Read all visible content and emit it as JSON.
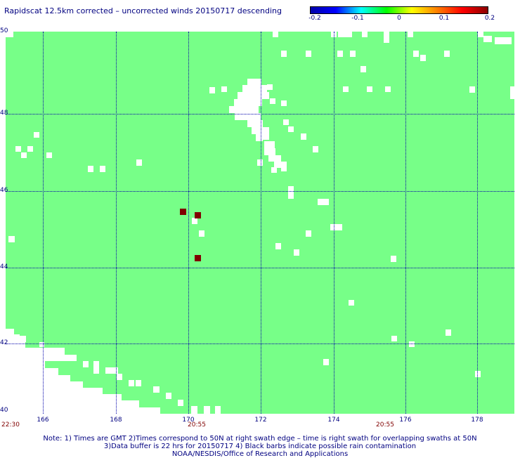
{
  "title": "Rapidscat 12.5km corrected – uncorrected winds 20150717 descending",
  "colorbar": {
    "ticks": [
      "-0.2",
      "-0.1",
      "0",
      "0.1",
      "0.2"
    ],
    "gradient": [
      "#0000aa",
      "#0000ff",
      "#00ffff",
      "#00ff00",
      "#ffff00",
      "#ff8000",
      "#ff0000",
      "#8b0000"
    ]
  },
  "map": {
    "background_color": "#77ff88",
    "no_data_color": "#ffffff",
    "lat_labels": [
      "50",
      "48",
      "46",
      "44",
      "42",
      "40"
    ],
    "lon_labels": [
      "166",
      "168",
      "170",
      "172",
      "174",
      "176",
      "178"
    ],
    "time_labels": [
      "22:30",
      "20:55",
      "20:55"
    ],
    "wind_diff_cells": [
      {
        "lon": 169.8,
        "lat": 45.4,
        "color": "#800000"
      },
      {
        "lon": 170.2,
        "lat": 45.3,
        "color": "#800000"
      },
      {
        "lon": 170.2,
        "lat": 44.2,
        "color": "#800000"
      }
    ]
  },
  "notes": [
    "Note: 1) Times are GMT 2)Times correspond to 50N at right swath edge – time is right swath for overlapping swaths at 50N",
    "3)Data buffer is 22 hrs for 20150717 4) Black barbs indicate possible rain contamination",
    "NOAA/NESDIS/Office of Research and Applications"
  ]
}
